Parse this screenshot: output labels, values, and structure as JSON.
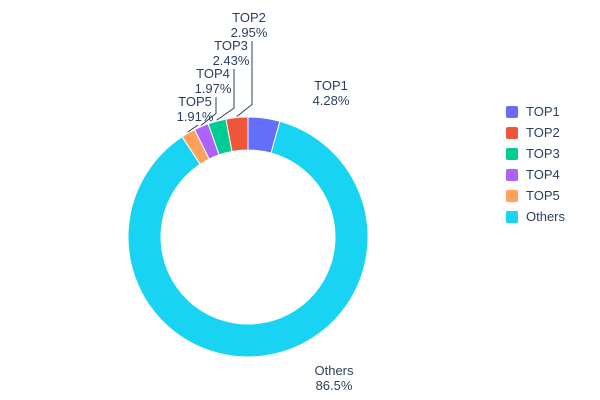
{
  "chart_data": {
    "type": "pie",
    "subtype": "donut",
    "labels": [
      "TOP1",
      "TOP2",
      "TOP3",
      "TOP4",
      "TOP5",
      "Others"
    ],
    "values": [
      4.28,
      2.95,
      2.43,
      1.97,
      1.91,
      86.5
    ],
    "display_values": [
      "4.28%",
      "2.95%",
      "2.43%",
      "1.97%",
      "1.91%",
      "86.5%"
    ],
    "colors": {
      "TOP1": "#636efa",
      "TOP2": "#ef553b",
      "TOP3": "#00cc96",
      "TOP4": "#ab63fa",
      "TOP5": "#ffa15a",
      "Others": "#19d3f3"
    },
    "hole_ratio": 0.725,
    "start_angle_deg_from_top": 0,
    "clockwise_order": [
      "TOP1",
      "Others",
      "TOP5",
      "TOP4",
      "TOP3",
      "TOP2"
    ],
    "legend": {
      "position": "right",
      "entries": [
        "TOP1",
        "TOP2",
        "TOP3",
        "TOP4",
        "TOP5",
        "Others"
      ]
    },
    "text_color": "#2a3f5f",
    "background": "#ffffff",
    "title": "",
    "grid": false
  }
}
